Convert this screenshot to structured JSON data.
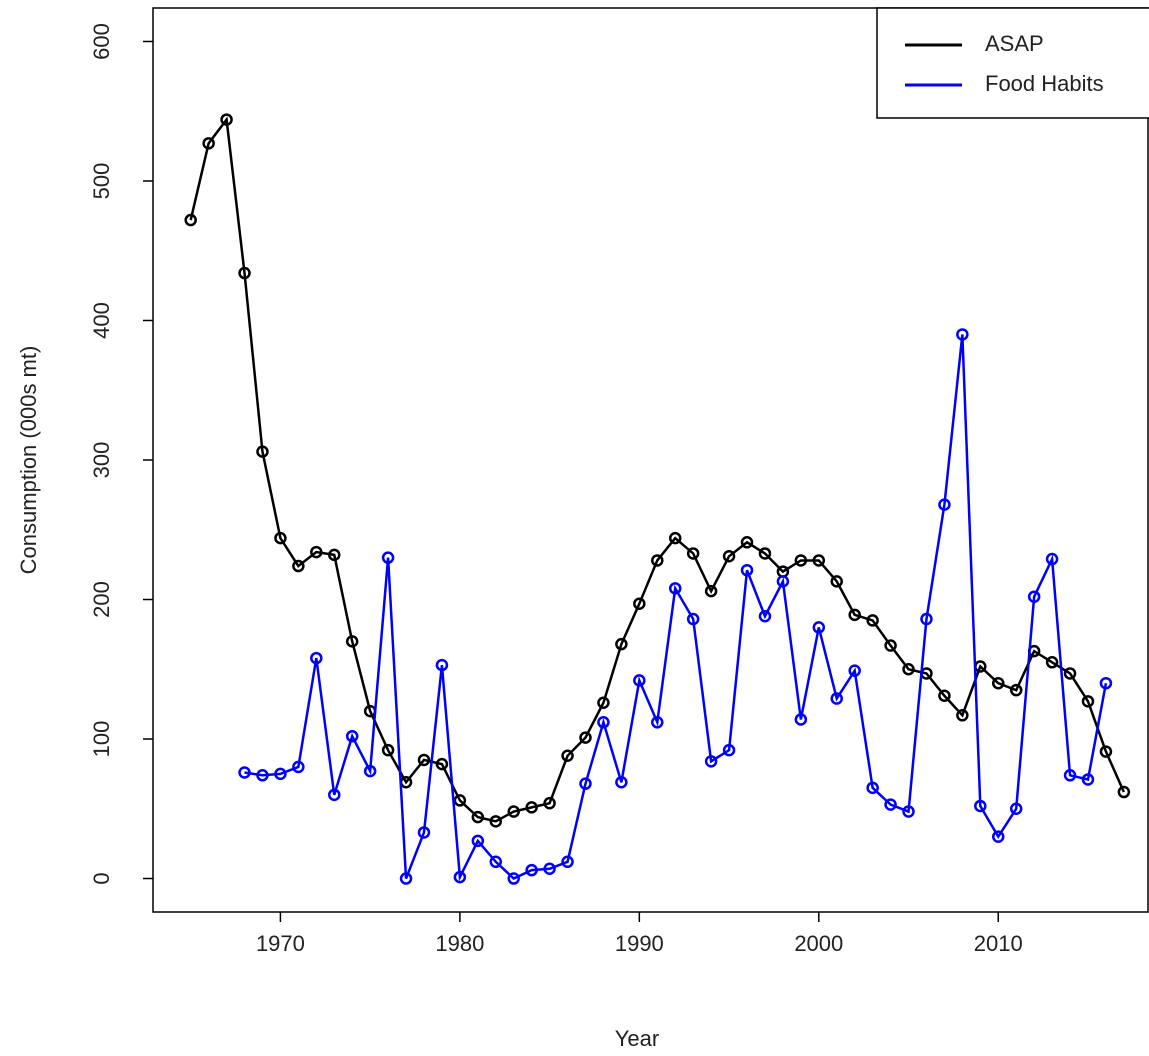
{
  "chart_data": {
    "type": "line",
    "x_label": "Year",
    "y_label": "Consumption (000s mt)",
    "xlim": [
      1962.9,
      2018.4
    ],
    "xticks": [
      1970,
      1980,
      1990,
      2000,
      2010
    ],
    "ylim": [
      -24,
      624
    ],
    "yticks": [
      0,
      100,
      200,
      300,
      400,
      500,
      600
    ],
    "legend": "top-right",
    "series": [
      {
        "name": "ASAP",
        "color": "#000000",
        "x": [
          1965,
          1966,
          1967,
          1968,
          1969,
          1970,
          1971,
          1972,
          1973,
          1974,
          1975,
          1976,
          1977,
          1978,
          1979,
          1980,
          1981,
          1982,
          1983,
          1984,
          1985,
          1986,
          1987,
          1988,
          1989,
          1990,
          1991,
          1992,
          1993,
          1994,
          1995,
          1996,
          1997,
          1998,
          1999,
          2000,
          2001,
          2002,
          2003,
          2004,
          2005,
          2006,
          2007,
          2008,
          2009,
          2010,
          2011,
          2012,
          2013,
          2014,
          2015,
          2016,
          2017
        ],
        "values": [
          472,
          527,
          544,
          434,
          306,
          244,
          224,
          234,
          232,
          170,
          120,
          92,
          69,
          85,
          82,
          56,
          44,
          41,
          48,
          51,
          54,
          88,
          101,
          126,
          168,
          197,
          228,
          244,
          233,
          206,
          231,
          241,
          233,
          220,
          228,
          228,
          213,
          189,
          185,
          167,
          150,
          147,
          131,
          117,
          152,
          140,
          135,
          163,
          155,
          147,
          127,
          91,
          62
        ]
      },
      {
        "name": "Food Habits",
        "color": "#0000ff",
        "x": [
          1968,
          1969,
          1970,
          1971,
          1972,
          1973,
          1974,
          1975,
          1976,
          1977,
          1978,
          1979,
          1980,
          1981,
          1982,
          1983,
          1984,
          1985,
          1986,
          1987,
          1988,
          1989,
          1990,
          1991,
          1992,
          1993,
          1994,
          1995,
          1996,
          1997,
          1998,
          1999,
          2000,
          2001,
          2002,
          2003,
          2004,
          2005,
          2006,
          2007,
          2008,
          2009,
          2010,
          2011,
          2012,
          2013,
          2014,
          2015,
          2016
        ],
        "values": [
          76,
          74,
          75,
          80,
          158,
          60,
          102,
          77,
          230,
          0,
          33,
          153,
          1,
          27,
          12,
          0,
          6,
          7,
          12,
          68,
          112,
          69,
          142,
          112,
          208,
          186,
          84,
          92,
          221,
          188,
          213,
          114,
          180,
          129,
          149,
          65,
          53,
          48,
          186,
          268,
          390,
          52,
          30,
          50,
          202,
          229,
          74,
          71,
          140
        ]
      }
    ]
  }
}
